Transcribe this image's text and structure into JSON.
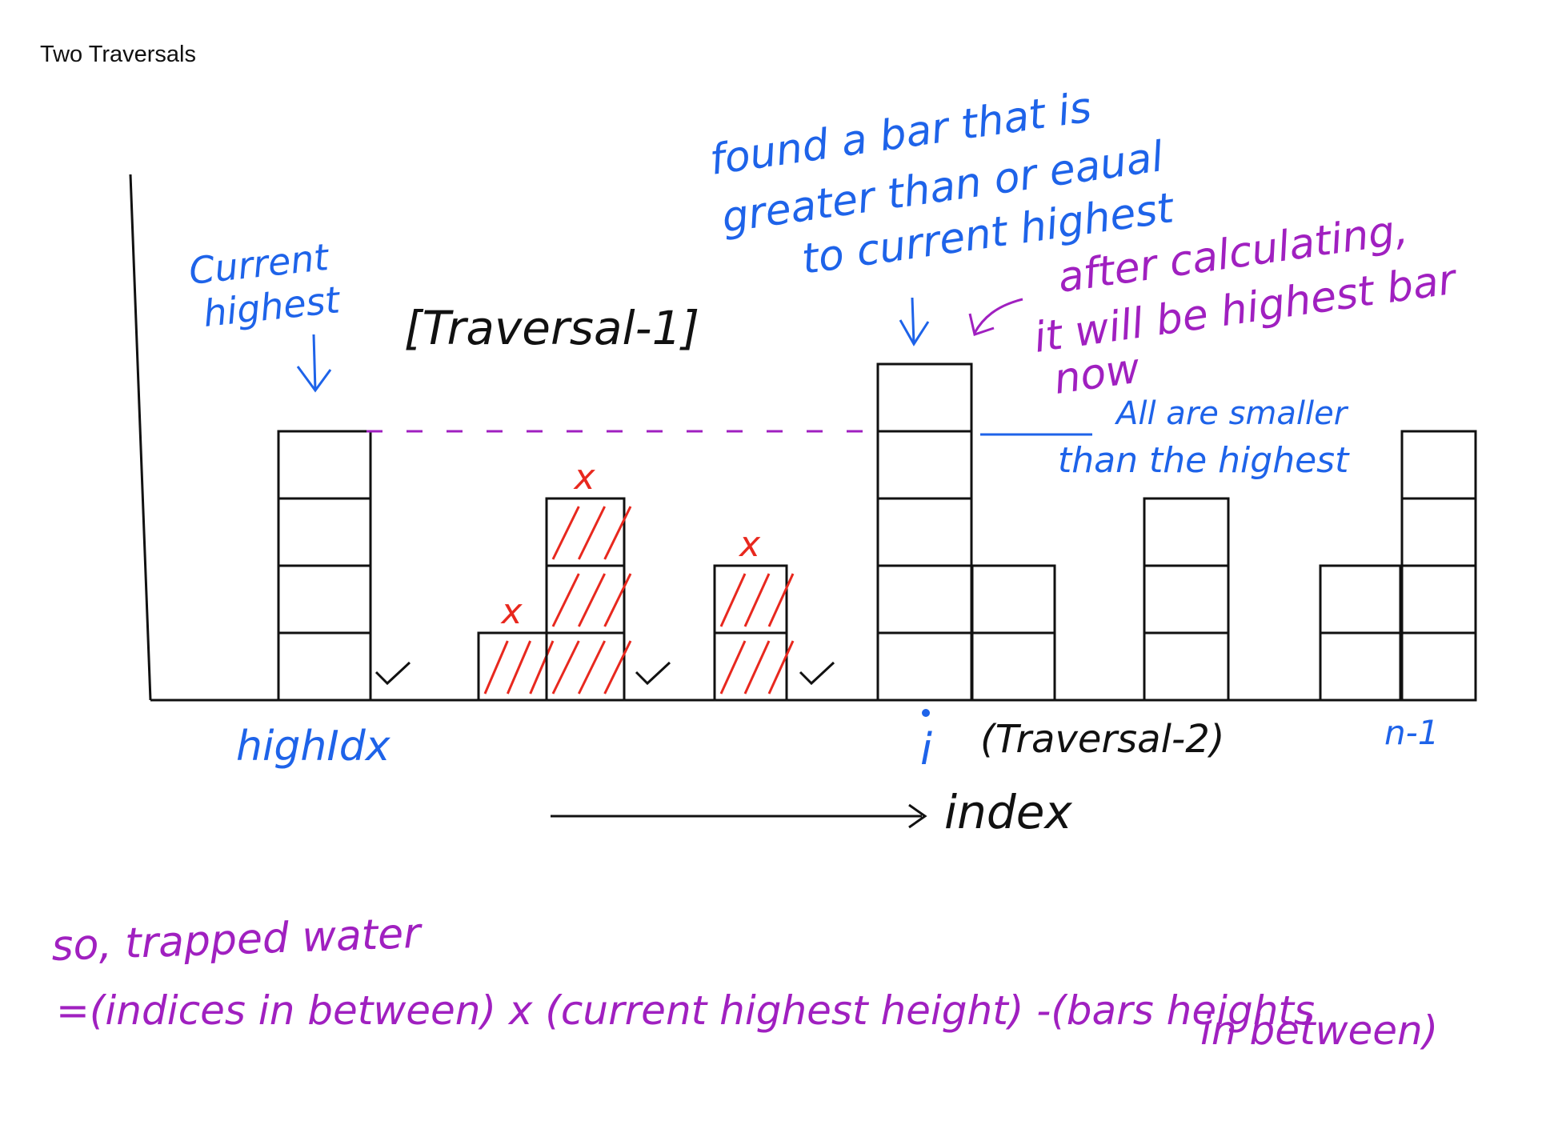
{
  "title": "Two Traversals",
  "labels": {
    "current_highest": [
      "Current",
      "highest"
    ],
    "traversal_1": "[Traversal-1]",
    "found_bar": [
      "found a bar that is",
      "greater than or eaual",
      "to current highest"
    ],
    "after_calc": [
      "after calculating,",
      "it will be highest bar",
      "now"
    ],
    "all_smaller": [
      "All are smaller",
      "than the highest"
    ],
    "high_idx": "highIdx",
    "i": "i",
    "traversal_2": "(Traversal-2)",
    "n_minus_1": "n-1",
    "index": "index",
    "x_mark": "x",
    "check_mark": "✓"
  },
  "formula": {
    "line1": "so, trapped water",
    "line2": "=(indices in between) x (current highest height) -(bars heights",
    "line3": "in between)"
  },
  "bars": [
    {
      "units": 4,
      "role": "current-highest"
    },
    {
      "units": 0,
      "role": "check"
    },
    {
      "units": 1,
      "role": "crossed"
    },
    {
      "units": 3,
      "role": "crossed"
    },
    {
      "units": 0,
      "role": "check"
    },
    {
      "units": 2,
      "role": "crossed"
    },
    {
      "units": 0,
      "role": "check"
    },
    {
      "units": 5,
      "role": "found"
    },
    {
      "units": 2,
      "role": "plain"
    },
    {
      "units": 0,
      "role": "empty"
    },
    {
      "units": 3,
      "role": "plain"
    },
    {
      "units": 0,
      "role": "empty"
    },
    {
      "units": 2,
      "role": "plain"
    },
    {
      "units": 4,
      "role": "plain"
    }
  ],
  "colors": {
    "blue": "#1e63e9",
    "purple": "#a020c0",
    "red": "#e8281e",
    "ink": "#111111"
  }
}
